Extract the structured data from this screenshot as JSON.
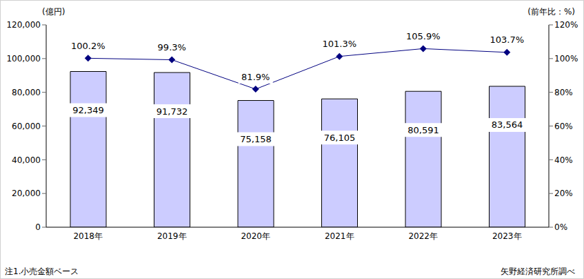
{
  "chart_data": {
    "type": "bar",
    "y_label": "(億円)",
    "y2_label": "(前年比：%)",
    "footnote": "注1.小売金額ベース",
    "source": "矢野経済研究所調べ",
    "categories": [
      "2018年",
      "2019年",
      "2020年",
      "2021年",
      "2022年",
      "2023年"
    ],
    "series": [
      {
        "type": "bar",
        "color": "#ccccff",
        "values": [
          92349,
          91732,
          75158,
          76105,
          80591,
          83564
        ],
        "value_labels": [
          "92,349",
          "91,732",
          "75,158",
          "76,105",
          "80,591",
          "83,564"
        ]
      },
      {
        "type": "line",
        "axis": "y2",
        "color": "#000080",
        "marker": "diamond",
        "values": [
          100.2,
          99.3,
          81.9,
          101.3,
          105.9,
          103.7
        ],
        "value_labels": [
          "100.2%",
          "99.3%",
          "81.9%",
          "101.3%",
          "105.9%",
          "103.7%"
        ]
      }
    ],
    "ylim": [
      0,
      120000
    ],
    "yticks": [
      0,
      {
        "value": 20000,
        "label": "20,000"
      },
      {
        "value": 40000,
        "label": "40,000"
      },
      {
        "value": 60000,
        "label": "60,000"
      },
      {
        "value": 80000,
        "label": "80,000"
      },
      {
        "value": 100000,
        "label": "100,000"
      },
      {
        "value": 120000,
        "label": "120,000"
      }
    ],
    "y2lim": [
      0,
      120
    ],
    "y2ticks": [
      {
        "value": 0,
        "label": "0%"
      },
      {
        "value": 20,
        "label": "20%"
      },
      {
        "value": 40,
        "label": "40%"
      },
      {
        "value": 60,
        "label": "60%"
      },
      {
        "value": 80,
        "label": "80%"
      },
      {
        "value": 100,
        "label": "100%"
      },
      {
        "value": 120,
        "label": "120%"
      }
    ],
    "data_labels": true,
    "grid": false
  }
}
